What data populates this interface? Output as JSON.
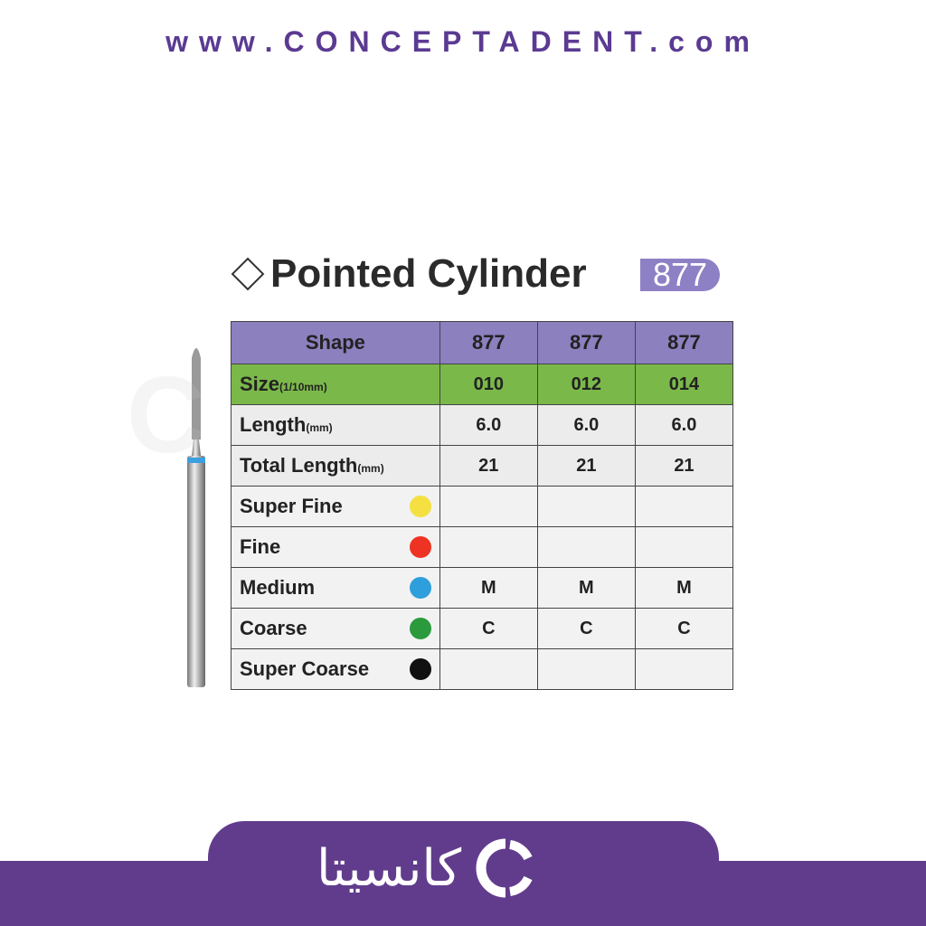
{
  "header": {
    "website": "www.CONCEPTADENT.com"
  },
  "product": {
    "title": "Pointed Cylinder",
    "code": "877"
  },
  "table": {
    "header": {
      "label": "Shape",
      "values": [
        "877",
        "877",
        "877"
      ]
    },
    "size": {
      "label": "Size",
      "unit": "(1/10mm)",
      "values": [
        "010",
        "012",
        "014"
      ]
    },
    "length": {
      "label": "Length",
      "unit": "(mm)",
      "values": [
        "6.0",
        "6.0",
        "6.0"
      ]
    },
    "total_length": {
      "label": "Total Length",
      "unit": "(mm)",
      "values": [
        "21",
        "21",
        "21"
      ]
    },
    "grits": [
      {
        "label": "Super Fine",
        "color": "#f5e042",
        "values": [
          "",
          "",
          ""
        ]
      },
      {
        "label": "Fine",
        "color": "#ee3324",
        "values": [
          "",
          "",
          ""
        ]
      },
      {
        "label": "Medium",
        "color": "#2e9fdc",
        "values": [
          "M",
          "M",
          "M"
        ]
      },
      {
        "label": "Coarse",
        "color": "#2a9a3c",
        "values": [
          "C",
          "C",
          "C"
        ]
      },
      {
        "label": "Super Coarse",
        "color": "#111111",
        "values": [
          "",
          "",
          ""
        ]
      }
    ]
  },
  "footer": {
    "logo_text": "کانسیتا"
  },
  "colors": {
    "brand": "#613c8c",
    "header_row": "#8c80bf",
    "size_row": "#7bb84a"
  }
}
